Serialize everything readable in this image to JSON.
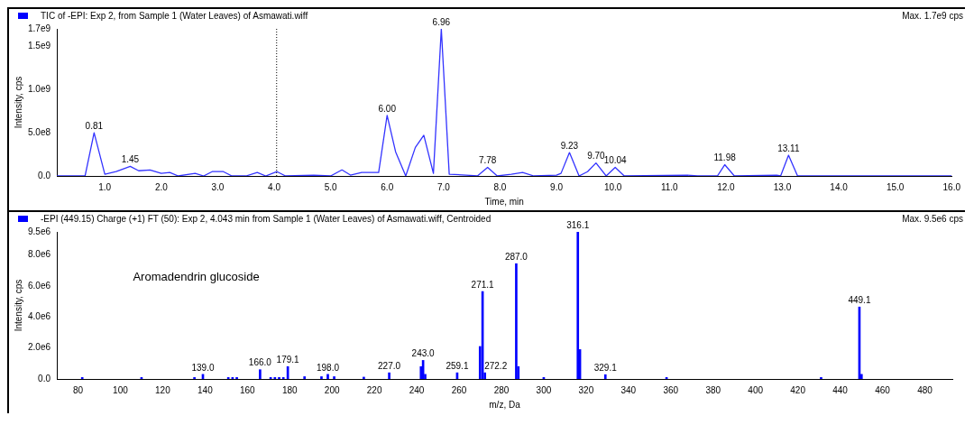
{
  "chart_data": [
    {
      "type": "line",
      "title": "TIC of -EPI: Exp 2, from Sample 1 (Water Leaves) of Asmawati.wiff",
      "subtitle": "Max. 1.7e9 cps",
      "xlabel": "Time, min",
      "ylabel": "Intensity, cps",
      "x": [
        0.15,
        0.65,
        0.81,
        1.0,
        1.2,
        1.45,
        1.6,
        1.8,
        2.0,
        2.15,
        2.3,
        2.6,
        2.75,
        2.9,
        3.1,
        3.25,
        3.5,
        3.7,
        3.85,
        4.05,
        4.2,
        4.7,
        5.0,
        5.2,
        5.35,
        5.55,
        5.85,
        6.0,
        6.15,
        6.33,
        6.5,
        6.65,
        6.82,
        6.96,
        7.1,
        7.4,
        7.6,
        7.78,
        7.95,
        8.2,
        8.4,
        8.6,
        9.0,
        9.08,
        9.23,
        9.4,
        9.55,
        9.7,
        9.88,
        10.04,
        10.2,
        11.3,
        11.5,
        11.85,
        11.98,
        12.15,
        12.9,
        12.97,
        13.11,
        13.27,
        16.0
      ],
      "series": [
        {
          "color": "#3333ff",
          "values": [
            0,
            0,
            500000000,
            20000000,
            50000000,
            110000000,
            60000000,
            70000000,
            30000000,
            40000000,
            0,
            30000000,
            0,
            50000000,
            50000000,
            0,
            0,
            40000000,
            0,
            50000000,
            0,
            10000000,
            0,
            70000000,
            10000000,
            40000000,
            40000000,
            700000000,
            280000000,
            0,
            330000000,
            470000000,
            30000000,
            1700000000,
            20000000,
            10000000,
            0,
            100000000,
            0,
            20000000,
            40000000,
            0,
            10000000,
            30000000,
            270000000,
            0,
            50000000,
            150000000,
            0,
            100000000,
            0,
            10000000,
            0,
            0,
            130000000,
            0,
            10000000,
            0,
            240000000,
            0,
            0
          ]
        }
      ],
      "xlim": [
        0.15,
        16.0
      ],
      "xticks": [
        {
          "value": 1,
          "label": "1.0"
        },
        {
          "value": 2,
          "label": "2.0"
        },
        {
          "value": 3,
          "label": "3.0"
        },
        {
          "value": 4,
          "label": "4.0"
        },
        {
          "value": 5,
          "label": "5.0"
        },
        {
          "value": 6,
          "label": "6.0"
        },
        {
          "value": 7,
          "label": "7.0"
        },
        {
          "value": 8,
          "label": "8.0"
        },
        {
          "value": 9,
          "label": "9.0"
        },
        {
          "value": 10,
          "label": "10.0"
        },
        {
          "value": 11,
          "label": "11.0"
        },
        {
          "value": 12,
          "label": "12.0"
        },
        {
          "value": 13,
          "label": "13.0"
        },
        {
          "value": 14,
          "label": "14.0"
        },
        {
          "value": 15,
          "label": "15.0"
        },
        {
          "value": 16,
          "label": "16.0"
        }
      ],
      "ylim": [
        0,
        1700000000
      ],
      "yticks": [
        {
          "value": 0,
          "label": "0.0"
        },
        {
          "value": 500000000,
          "label": "5.0e8"
        },
        {
          "value": 1000000000,
          "label": "1.0e9"
        },
        {
          "value": 1500000000,
          "label": "1.5e9"
        },
        {
          "value": 1700000000,
          "label": "1.7e9"
        }
      ],
      "grid": false,
      "legend": false,
      "ref_lines": [
        {
          "axis": "x",
          "value": 4.043,
          "line_style": "dotted",
          "color": "#000000"
        }
      ],
      "annotations": [
        {
          "text": "0.81",
          "x": 0.81,
          "y": 500000000
        },
        {
          "text": "1.45",
          "x": 1.45,
          "y": 110000000
        },
        {
          "text": "6.00",
          "x": 6.0,
          "y": 700000000
        },
        {
          "text": "6.96",
          "x": 6.96,
          "y": 1700000000
        },
        {
          "text": "7.78",
          "x": 7.78,
          "y": 100000000
        },
        {
          "text": "9.23",
          "x": 9.23,
          "y": 270000000
        },
        {
          "text": "9.70",
          "x": 9.7,
          "y": 150000000
        },
        {
          "text": "10.04",
          "x": 10.04,
          "y": 100000000
        },
        {
          "text": "11.98",
          "x": 11.98,
          "y": 130000000
        },
        {
          "text": "13.11",
          "x": 13.11,
          "y": 240000000
        }
      ]
    },
    {
      "type": "bar",
      "title": "-EPI (449.15) Charge (+1) FT (50): Exp 2, 4.043 min from Sample 1 (Water Leaves) of Asmawati.wiff, Centroided",
      "subtitle": "Max. 9.5e6 cps",
      "xlabel": "m/z, Da",
      "ylabel": "Intensity, cps",
      "x": [
        82,
        110,
        135,
        139.0,
        151,
        153,
        155,
        166.0,
        171,
        173,
        175,
        177,
        179.1,
        187,
        195,
        198.0,
        201,
        215,
        227.0,
        242,
        243.0,
        244,
        259.1,
        269.9,
        271.1,
        272.2,
        287.0,
        288,
        300,
        316.1,
        317.1,
        329.1,
        358,
        431,
        449.1,
        450.1
      ],
      "series": [
        {
          "color": "#0000ff",
          "values": [
            100000,
            100000,
            100000,
            300000,
            100000,
            100000,
            100000,
            600000,
            100000,
            100000,
            100000,
            100000,
            800000,
            150000,
            150000,
            300000,
            150000,
            120000,
            400000,
            800000,
            1200000,
            300000,
            400000,
            2100000,
            5650000,
            400000,
            7450000,
            800000,
            100000,
            9500000,
            1900000,
            280000,
            100000,
            100000,
            4650000,
            300000
          ]
        }
      ],
      "xlim": [
        70,
        493
      ],
      "xticks": [
        80,
        100,
        120,
        140,
        160,
        180,
        200,
        220,
        240,
        260,
        280,
        300,
        320,
        340,
        360,
        380,
        400,
        420,
        440,
        460,
        480
      ],
      "ylim": [
        0,
        9500000
      ],
      "yticks": [
        {
          "value": 0,
          "label": "0.0"
        },
        {
          "value": 2000000,
          "label": "2.0e6"
        },
        {
          "value": 4000000,
          "label": "4.0e6"
        },
        {
          "value": 6000000,
          "label": "6.0e6"
        },
        {
          "value": 8000000,
          "label": "8.0e6"
        },
        {
          "value": 9500000,
          "label": "9.5e6"
        }
      ],
      "grid": false,
      "legend": false,
      "annotations": [
        "Aromadendrin glucoside",
        {
          "text": "139.0",
          "x": 139.0,
          "y": 300000
        },
        {
          "text": "166.0",
          "x": 166.0,
          "y": 600000
        },
        {
          "text": "179.1",
          "x": 179.1,
          "y": 800000
        },
        {
          "text": "198.0",
          "x": 198.0,
          "y": 300000
        },
        {
          "text": "227.0",
          "x": 227.0,
          "y": 400000
        },
        {
          "text": "243.0",
          "x": 243.0,
          "y": 1200000
        },
        {
          "text": "259.1",
          "x": 259.1,
          "y": 400000
        },
        {
          "text": "271.1",
          "x": 271.1,
          "y": 5650000
        },
        {
          "text": "272.2",
          "x": 272.2,
          "y": 400000
        },
        {
          "text": "287.0",
          "x": 287.0,
          "y": 7450000
        },
        {
          "text": "316.1",
          "x": 316.1,
          "y": 9500000
        },
        {
          "text": "329.1",
          "x": 329.1,
          "y": 280000
        },
        {
          "text": "449.1",
          "x": 449.1,
          "y": 4650000
        }
      ]
    }
  ]
}
